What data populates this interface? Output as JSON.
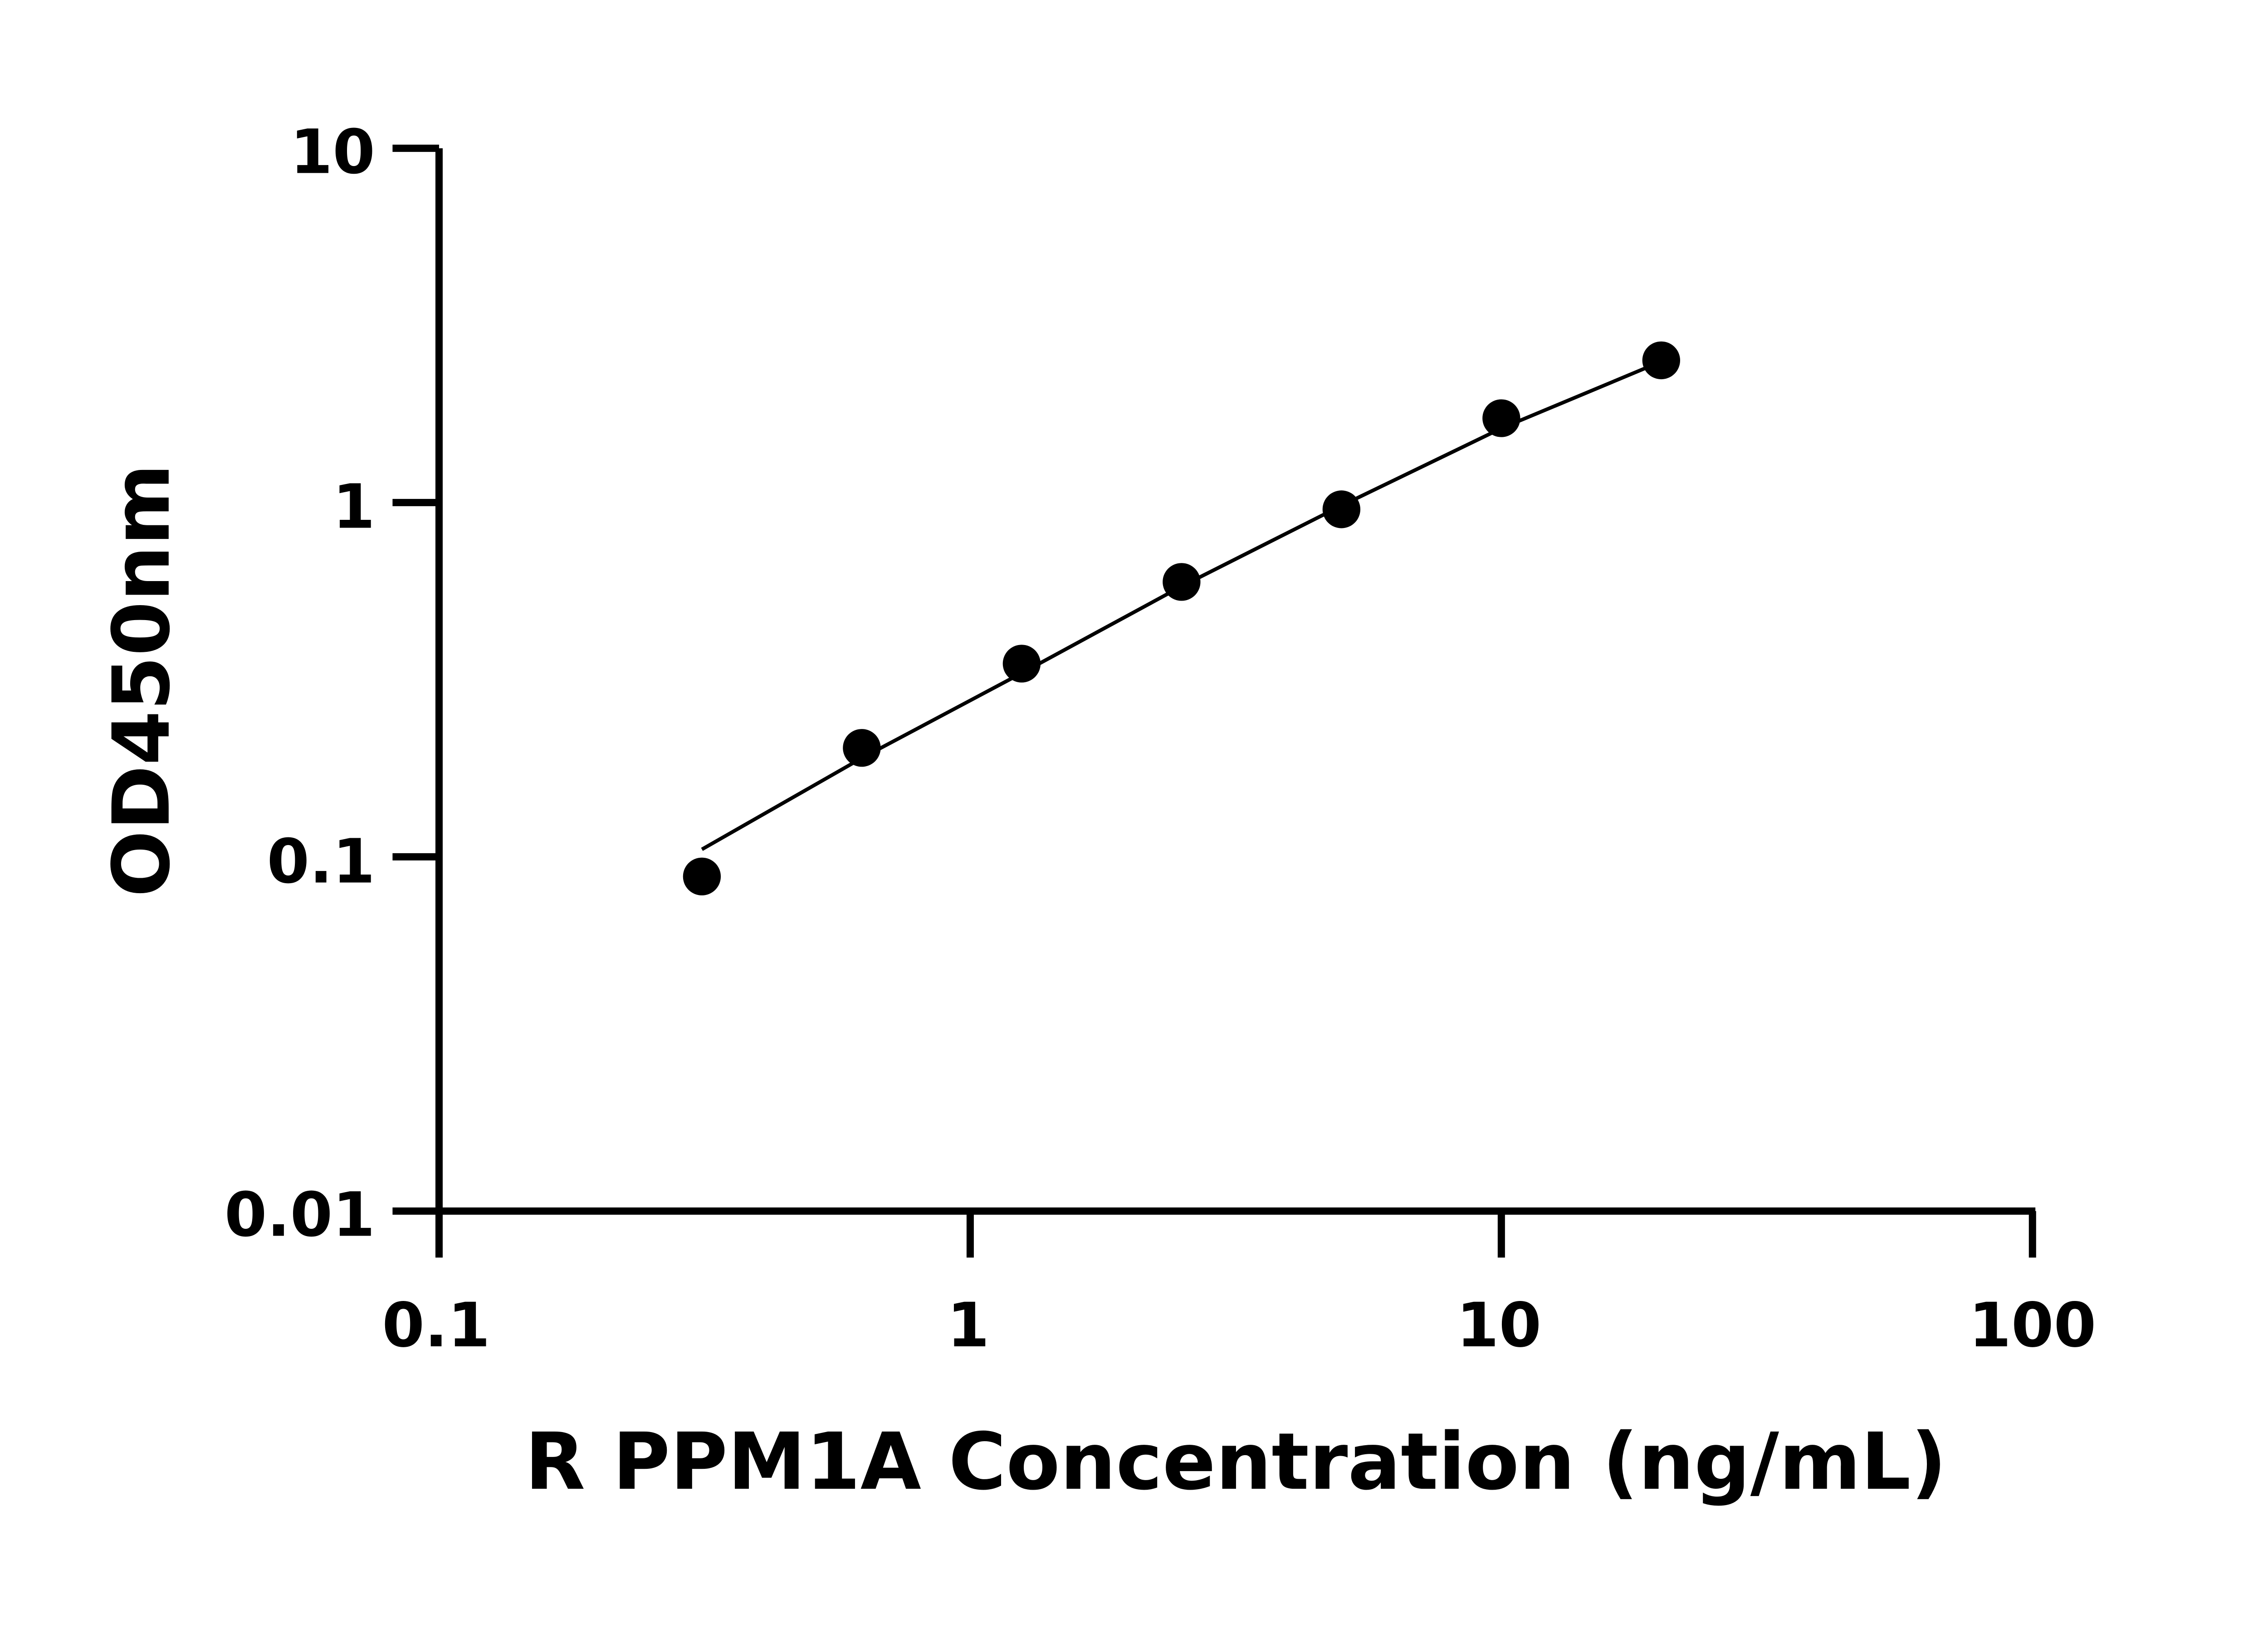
{
  "chart_data": {
    "type": "scatter",
    "title": "",
    "xlabel": "R PPM1A Concentration (ng/mL)",
    "ylabel": "OD450nm",
    "x_scale": "log",
    "y_scale": "log",
    "xlim": [
      0.1,
      100
    ],
    "ylim": [
      0.01,
      10
    ],
    "x_ticks": [
      "0.1",
      "1",
      "10",
      "100"
    ],
    "y_ticks": [
      "0.01",
      "0.1",
      "1",
      "10"
    ],
    "grid": false,
    "legend": "none",
    "marker_color": "#000000",
    "series": [
      {
        "x": [
          0.3125,
          0.625,
          1.25,
          2.5,
          5,
          10,
          20
        ],
        "y": [
          0.088,
          0.203,
          0.351,
          0.597,
          0.957,
          1.73,
          2.52
        ]
      }
    ],
    "fit_curve": {
      "x": [
        0.3125,
        0.625,
        1.25,
        2.5,
        5,
        10,
        20
      ],
      "y": [
        0.105,
        0.19,
        0.33,
        0.58,
        0.98,
        1.62,
        2.5
      ]
    }
  }
}
